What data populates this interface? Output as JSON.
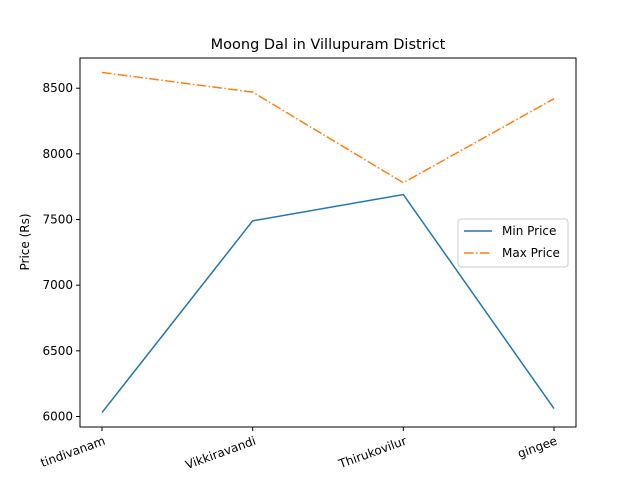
{
  "chart_data": {
    "type": "line",
    "title": "Moong Dal in Villupuram District",
    "xlabel": "",
    "ylabel": "Price (Rs)",
    "categories": [
      "tindivanam",
      "Vikkiravandi",
      "Thirukovilur",
      "gingee"
    ],
    "series": [
      {
        "name": "Min Price",
        "values": [
          6030,
          7490,
          7690,
          6060
        ],
        "color": "#1f77b4",
        "dash": "solid"
      },
      {
        "name": "Max Price",
        "values": [
          8620,
          8470,
          7780,
          8420
        ],
        "color": "#ff7f0e",
        "dash": "dashdot"
      }
    ],
    "ylim": [
      5920,
      8730
    ],
    "yticks": [
      6000,
      6500,
      7000,
      7500,
      8000,
      8500
    ],
    "grid": false,
    "legend_position": "center-right"
  }
}
